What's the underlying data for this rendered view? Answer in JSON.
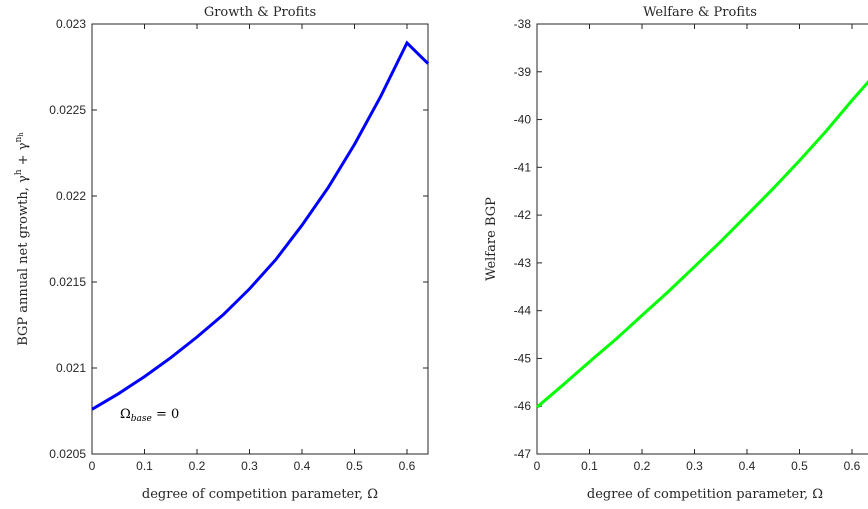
{
  "chart_data": [
    {
      "type": "line",
      "title": "Growth & Profits",
      "xlabel": "degree of competition parameter, Ω",
      "ylabel": "BGP annual net growth, γ^h + γ^{n_h}",
      "xlim": [
        0,
        0.64
      ],
      "ylim": [
        0.0205,
        0.023
      ],
      "xticks": [
        "0",
        "0.1",
        "0.2",
        "0.3",
        "0.4",
        "0.5",
        "0.6"
      ],
      "yticks": [
        "0.0205",
        "0.021",
        "0.0215",
        "0.022",
        "0.0225",
        "0.023"
      ],
      "grid": false,
      "annotation": "Ω_base = 0",
      "series": [
        {
          "color": "#0000ff",
          "x": [
            0,
            0.05,
            0.1,
            0.15,
            0.2,
            0.25,
            0.3,
            0.35,
            0.4,
            0.45,
            0.5,
            0.55,
            0.6,
            0.64
          ],
          "y": [
            0.02076,
            0.02085,
            0.02095,
            0.02106,
            0.02118,
            0.02131,
            0.02146,
            0.02163,
            0.02183,
            0.02205,
            0.0223,
            0.02258,
            0.02289,
            0.02277
          ]
        }
      ]
    },
    {
      "type": "line",
      "title": "Welfare & Profits",
      "xlabel": "degree of competition parameter, Ω",
      "ylabel": "Welfare BGP",
      "xlim": [
        0,
        0.64
      ],
      "ylim": [
        -47,
        -38
      ],
      "xticks": [
        "0",
        "0.1",
        "0.2",
        "0.3",
        "0.4",
        "0.5",
        "0.6"
      ],
      "yticks": [
        "-47",
        "-46",
        "-45",
        "-44",
        "-43",
        "-42",
        "-41",
        "-40",
        "-39",
        "-38"
      ],
      "grid": false,
      "series": [
        {
          "color": "#00ff00",
          "x": [
            0,
            0.05,
            0.1,
            0.15,
            0.2,
            0.25,
            0.3,
            0.35,
            0.4,
            0.45,
            0.5,
            0.55,
            0.6,
            0.64
          ],
          "y": [
            -46.02,
            -45.55,
            -45.07,
            -44.6,
            -44.1,
            -43.6,
            -43.08,
            -42.55,
            -42.0,
            -41.44,
            -40.86,
            -40.25,
            -39.6,
            -39.1
          ]
        }
      ]
    }
  ]
}
